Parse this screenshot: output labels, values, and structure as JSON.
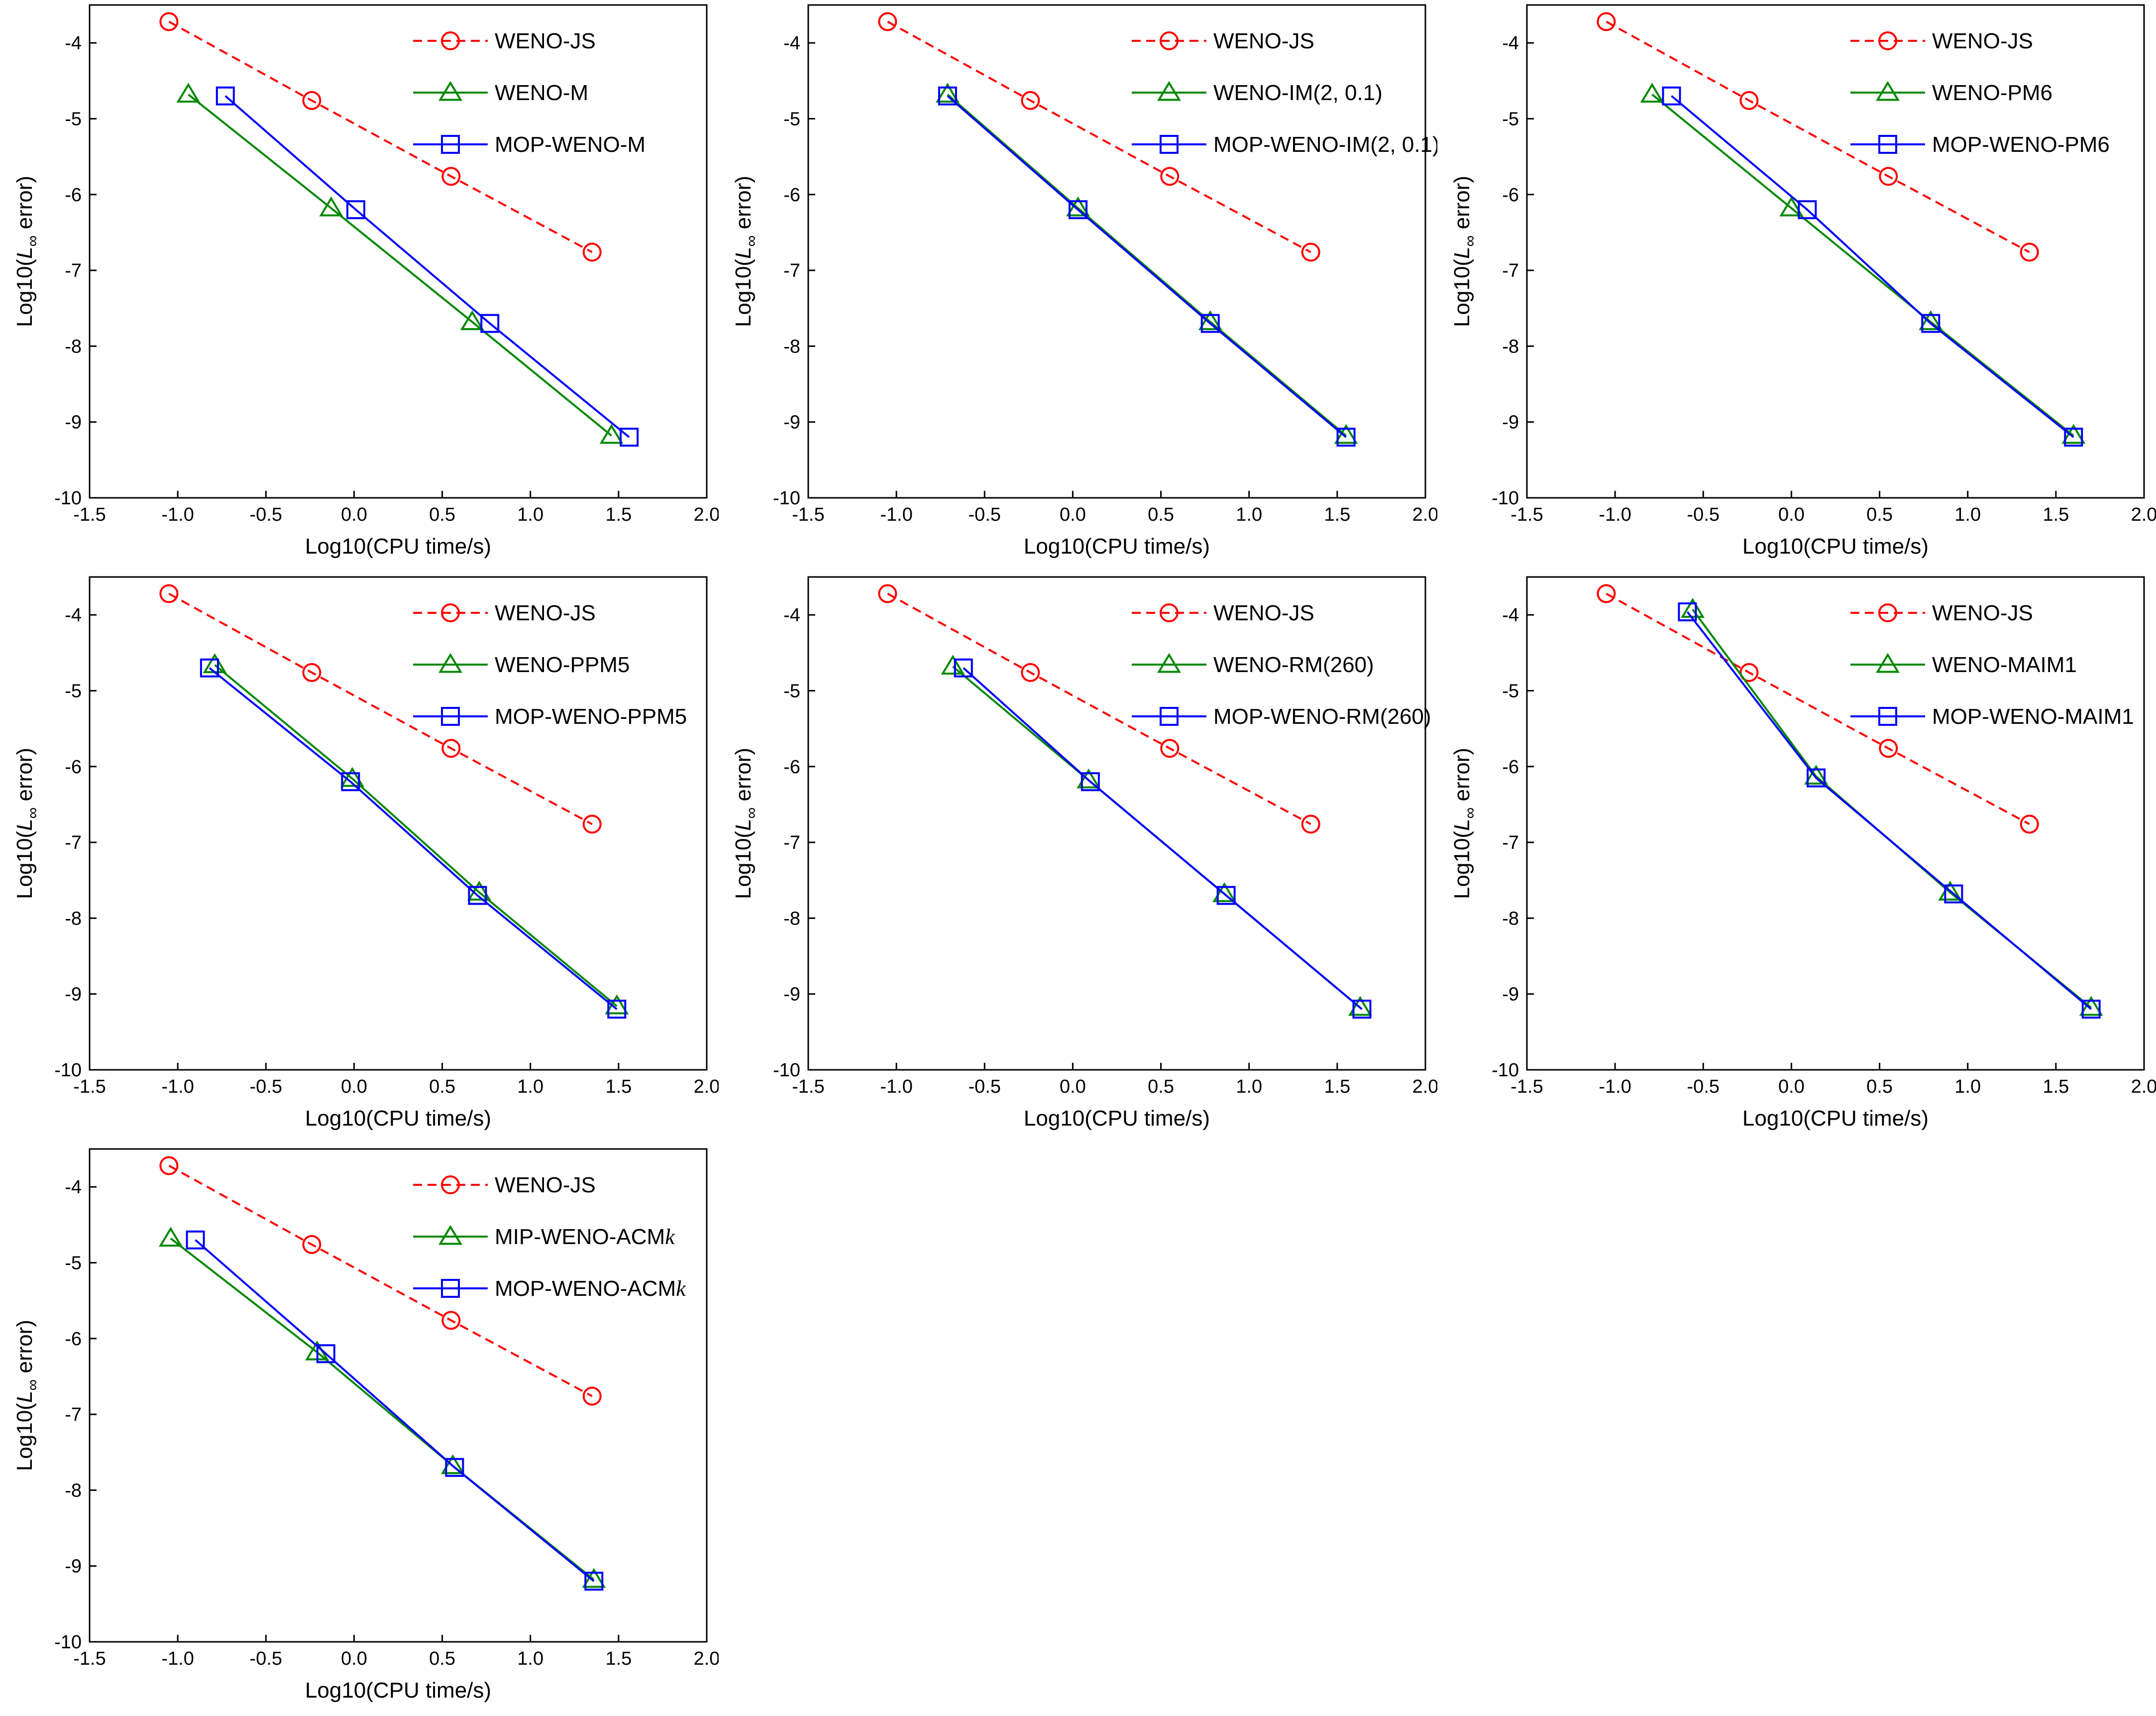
{
  "colors": {
    "js": "#ff0000",
    "method": "#008800",
    "mop": "#0000ff",
    "axis": "#000000"
  },
  "chart_data": [
    {
      "type": "line",
      "title": "",
      "xlabel": "Log10(CPU time/s)",
      "ylabel_prefix": "Log10(",
      "ylabel_symbol": "L",
      "ylabel_subscript": "∞",
      "ylabel_suffix": " error)",
      "xlim": [
        -1.5,
        2.0
      ],
      "ylim": [
        -10,
        -3.5
      ],
      "xticks": [
        -1.5,
        -1.0,
        -0.5,
        0.0,
        0.5,
        1.0,
        1.5,
        2.0
      ],
      "xticklabels": [
        "-1.5",
        "-1.0",
        "-0.5",
        "0.0",
        "0.5",
        "1.0",
        "1.5",
        "2.0"
      ],
      "yticks": [
        -10,
        -9,
        -8,
        -7,
        -6,
        -5,
        -4
      ],
      "yticklabels": [
        "-10",
        "-9",
        "-8",
        "-7",
        "-6",
        "-5",
        "-4"
      ],
      "legend": "top-right",
      "series": [
        {
          "name": "WENO-JS",
          "name_main": "WENO-JS",
          "name_italic": "",
          "style": "dashed",
          "marker": "circle",
          "color_key": "js",
          "x": [
            -1.05,
            -0.24,
            0.55,
            1.35
          ],
          "y": [
            -3.72,
            -4.76,
            -5.76,
            -6.76
          ]
        },
        {
          "name": "WENO-M",
          "name_main": "WENO-M",
          "name_italic": "",
          "style": "solid",
          "marker": "triangle",
          "color_key": "method",
          "x": [
            -0.94,
            -0.13,
            0.67,
            1.46
          ],
          "y": [
            -4.68,
            -6.18,
            -7.68,
            -9.18
          ]
        },
        {
          "name": "MOP-WENO-M",
          "name_main": "MOP-WENO-M",
          "name_italic": "",
          "style": "solid",
          "marker": "square",
          "color_key": "mop",
          "x": [
            -0.73,
            0.01,
            0.77,
            1.56
          ],
          "y": [
            -4.7,
            -6.2,
            -7.7,
            -9.2
          ]
        }
      ]
    },
    {
      "type": "line",
      "title": "",
      "xlabel": "Log10(CPU time/s)",
      "ylabel_prefix": "Log10(",
      "ylabel_symbol": "L",
      "ylabel_subscript": "∞",
      "ylabel_suffix": " error)",
      "xlim": [
        -1.5,
        2.0
      ],
      "ylim": [
        -10,
        -3.5
      ],
      "xticks": [
        -1.5,
        -1.0,
        -0.5,
        0.0,
        0.5,
        1.0,
        1.5,
        2.0
      ],
      "xticklabels": [
        "-1.5",
        "-1.0",
        "-0.5",
        "0.0",
        "0.5",
        "1.0",
        "1.5",
        "2.0"
      ],
      "yticks": [
        -10,
        -9,
        -8,
        -7,
        -6,
        -5,
        -4
      ],
      "yticklabels": [
        "-10",
        "-9",
        "-8",
        "-7",
        "-6",
        "-5",
        "-4"
      ],
      "legend": "top-right",
      "series": [
        {
          "name": "WENO-JS",
          "name_main": "WENO-JS",
          "name_italic": "",
          "style": "dashed",
          "marker": "circle",
          "color_key": "js",
          "x": [
            -1.05,
            -0.24,
            0.55,
            1.35
          ],
          "y": [
            -3.72,
            -4.76,
            -5.76,
            -6.76
          ]
        },
        {
          "name": "WENO-IM(2, 0.1)",
          "name_main": "WENO-IM(2, 0.1)",
          "name_italic": "",
          "style": "solid",
          "marker": "triangle",
          "color_key": "method",
          "x": [
            -0.71,
            0.03,
            0.78,
            1.55
          ],
          "y": [
            -4.68,
            -6.18,
            -7.68,
            -9.18
          ]
        },
        {
          "name": "MOP-WENO-IM(2, 0.1)",
          "name_main": "MOP-WENO-IM(2, 0.1)",
          "name_italic": "",
          "style": "solid",
          "marker": "square",
          "color_key": "mop",
          "x": [
            -0.71,
            0.03,
            0.78,
            1.55
          ],
          "y": [
            -4.7,
            -6.2,
            -7.7,
            -9.2
          ]
        }
      ]
    },
    {
      "type": "line",
      "title": "",
      "xlabel": "Log10(CPU time/s)",
      "ylabel_prefix": "Log10(",
      "ylabel_symbol": "L",
      "ylabel_subscript": "∞",
      "ylabel_suffix": " error)",
      "xlim": [
        -1.5,
        2.0
      ],
      "ylim": [
        -10,
        -3.5
      ],
      "xticks": [
        -1.5,
        -1.0,
        -0.5,
        0.0,
        0.5,
        1.0,
        1.5,
        2.0
      ],
      "xticklabels": [
        "-1.5",
        "-1.0",
        "-0.5",
        "0.0",
        "0.5",
        "1.0",
        "1.5",
        "2.0"
      ],
      "yticks": [
        -10,
        -9,
        -8,
        -7,
        -6,
        -5,
        -4
      ],
      "yticklabels": [
        "-10",
        "-9",
        "-8",
        "-7",
        "-6",
        "-5",
        "-4"
      ],
      "legend": "top-right",
      "series": [
        {
          "name": "WENO-JS",
          "name_main": "WENO-JS",
          "name_italic": "",
          "style": "dashed",
          "marker": "circle",
          "color_key": "js",
          "x": [
            -1.05,
            -0.24,
            0.55,
            1.35
          ],
          "y": [
            -3.72,
            -4.76,
            -5.76,
            -6.76
          ]
        },
        {
          "name": "WENO-PM6",
          "name_main": "WENO-PM6",
          "name_italic": "",
          "style": "solid",
          "marker": "triangle",
          "color_key": "method",
          "x": [
            -0.79,
            0.0,
            0.79,
            1.6
          ],
          "y": [
            -4.68,
            -6.18,
            -7.68,
            -9.18
          ]
        },
        {
          "name": "MOP-WENO-PM6",
          "name_main": "MOP-WENO-PM6",
          "name_italic": "",
          "style": "solid",
          "marker": "square",
          "color_key": "mop",
          "x": [
            -0.68,
            0.09,
            0.79,
            1.6
          ],
          "y": [
            -4.7,
            -6.2,
            -7.7,
            -9.2
          ]
        }
      ]
    },
    {
      "type": "line",
      "title": "",
      "xlabel": "Log10(CPU time/s)",
      "ylabel_prefix": "Log10(",
      "ylabel_symbol": "L",
      "ylabel_subscript": "∞",
      "ylabel_suffix": " error)",
      "xlim": [
        -1.5,
        2.0
      ],
      "ylim": [
        -10,
        -3.5
      ],
      "xticks": [
        -1.5,
        -1.0,
        -0.5,
        0.0,
        0.5,
        1.0,
        1.5,
        2.0
      ],
      "xticklabels": [
        "-1.5",
        "-1.0",
        "-0.5",
        "0.0",
        "0.5",
        "1.0",
        "1.5",
        "2.0"
      ],
      "yticks": [
        -10,
        -9,
        -8,
        -7,
        -6,
        -5,
        -4
      ],
      "yticklabels": [
        "-10",
        "-9",
        "-8",
        "-7",
        "-6",
        "-5",
        "-4"
      ],
      "legend": "top-right",
      "series": [
        {
          "name": "WENO-JS",
          "name_main": "WENO-JS",
          "name_italic": "",
          "style": "dashed",
          "marker": "circle",
          "color_key": "js",
          "x": [
            -1.05,
            -0.24,
            0.55,
            1.35
          ],
          "y": [
            -3.72,
            -4.76,
            -5.76,
            -6.76
          ]
        },
        {
          "name": "WENO-PPM5",
          "name_main": "WENO-PPM5",
          "name_italic": "",
          "style": "solid",
          "marker": "triangle",
          "color_key": "method",
          "x": [
            -0.79,
            -0.01,
            0.71,
            1.49
          ],
          "y": [
            -4.66,
            -6.16,
            -7.66,
            -9.16
          ]
        },
        {
          "name": "MOP-WENO-PPM5",
          "name_main": "MOP-WENO-PPM5",
          "name_italic": "",
          "style": "solid",
          "marker": "square",
          "color_key": "mop",
          "x": [
            -0.82,
            -0.02,
            0.7,
            1.49
          ],
          "y": [
            -4.7,
            -6.2,
            -7.7,
            -9.2
          ]
        }
      ]
    },
    {
      "type": "line",
      "title": "",
      "xlabel": "Log10(CPU time/s)",
      "ylabel_prefix": "Log10(",
      "ylabel_symbol": "L",
      "ylabel_subscript": "∞",
      "ylabel_suffix": " error)",
      "xlim": [
        -1.5,
        2.0
      ],
      "ylim": [
        -10,
        -3.5
      ],
      "xticks": [
        -1.5,
        -1.0,
        -0.5,
        0.0,
        0.5,
        1.0,
        1.5,
        2.0
      ],
      "xticklabels": [
        "-1.5",
        "-1.0",
        "-0.5",
        "0.0",
        "0.5",
        "1.0",
        "1.5",
        "2.0"
      ],
      "yticks": [
        -10,
        -9,
        -8,
        -7,
        -6,
        -5,
        -4
      ],
      "yticklabels": [
        "-10",
        "-9",
        "-8",
        "-7",
        "-6",
        "-5",
        "-4"
      ],
      "legend": "top-right",
      "series": [
        {
          "name": "WENO-JS",
          "name_main": "WENO-JS",
          "name_italic": "",
          "style": "dashed",
          "marker": "circle",
          "color_key": "js",
          "x": [
            -1.05,
            -0.24,
            0.55,
            1.35
          ],
          "y": [
            -3.72,
            -4.76,
            -5.76,
            -6.76
          ]
        },
        {
          "name": "WENO-RM(260)",
          "name_main": "WENO-RM(260)",
          "name_italic": "",
          "style": "solid",
          "marker": "triangle",
          "color_key": "method",
          "x": [
            -0.68,
            0.09,
            0.86,
            1.63
          ],
          "y": [
            -4.68,
            -6.18,
            -7.68,
            -9.18
          ]
        },
        {
          "name": "MOP-WENO-RM(260)",
          "name_main": "MOP-WENO-RM(260)",
          "name_italic": "",
          "style": "solid",
          "marker": "square",
          "color_key": "mop",
          "x": [
            -0.62,
            0.1,
            0.87,
            1.64
          ],
          "y": [
            -4.7,
            -6.2,
            -7.7,
            -9.2
          ]
        }
      ]
    },
    {
      "type": "line",
      "title": "",
      "xlabel": "Log10(CPU time/s)",
      "ylabel_prefix": "Log10(",
      "ylabel_symbol": "L",
      "ylabel_subscript": "∞",
      "ylabel_suffix": " error)",
      "xlim": [
        -1.5,
        2.0
      ],
      "ylim": [
        -10,
        -3.5
      ],
      "xticks": [
        -1.5,
        -1.0,
        -0.5,
        0.0,
        0.5,
        1.0,
        1.5,
        2.0
      ],
      "xticklabels": [
        "-1.5",
        "-1.0",
        "-0.5",
        "0.0",
        "0.5",
        "1.0",
        "1.5",
        "2.0"
      ],
      "yticks": [
        -10,
        -9,
        -8,
        -7,
        -6,
        -5,
        -4
      ],
      "yticklabels": [
        "-10",
        "-9",
        "-8",
        "-7",
        "-6",
        "-5",
        "-4"
      ],
      "legend": "top-right",
      "series": [
        {
          "name": "WENO-JS",
          "name_main": "WENO-JS",
          "name_italic": "",
          "style": "dashed",
          "marker": "circle",
          "color_key": "js",
          "x": [
            -1.05,
            -0.24,
            0.55,
            1.35
          ],
          "y": [
            -3.72,
            -4.76,
            -5.76,
            -6.76
          ]
        },
        {
          "name": "WENO-MAIM1",
          "name_main": "WENO-MAIM1",
          "name_italic": "",
          "style": "solid",
          "marker": "triangle",
          "color_key": "method",
          "x": [
            -0.56,
            0.14,
            0.9,
            1.7
          ],
          "y": [
            -3.93,
            -6.13,
            -7.66,
            -9.18
          ]
        },
        {
          "name": "MOP-WENO-MAIM1",
          "name_main": "MOP-WENO-MAIM1",
          "name_italic": "",
          "style": "solid",
          "marker": "square",
          "color_key": "mop",
          "x": [
            -0.59,
            0.14,
            0.92,
            1.7
          ],
          "y": [
            -3.96,
            -6.15,
            -7.68,
            -9.2
          ]
        }
      ]
    },
    {
      "type": "line",
      "title": "",
      "xlabel": "Log10(CPU time/s)",
      "ylabel_prefix": "Log10(",
      "ylabel_symbol": "L",
      "ylabel_subscript": "∞",
      "ylabel_suffix": " error)",
      "xlim": [
        -1.5,
        2.0
      ],
      "ylim": [
        -10,
        -3.5
      ],
      "xticks": [
        -1.5,
        -1.0,
        -0.5,
        0.0,
        0.5,
        1.0,
        1.5,
        2.0
      ],
      "xticklabels": [
        "-1.5",
        "-1.0",
        "-0.5",
        "0.0",
        "0.5",
        "1.0",
        "1.5",
        "2.0"
      ],
      "yticks": [
        -10,
        -9,
        -8,
        -7,
        -6,
        -5,
        -4
      ],
      "yticklabels": [
        "-10",
        "-9",
        "-8",
        "-7",
        "-6",
        "-5",
        "-4"
      ],
      "legend": "top-right",
      "series": [
        {
          "name": "WENO-JS",
          "name_main": "WENO-JS",
          "name_italic": "",
          "style": "dashed",
          "marker": "circle",
          "color_key": "js",
          "x": [
            -1.05,
            -0.24,
            0.55,
            1.35
          ],
          "y": [
            -3.72,
            -4.76,
            -5.76,
            -6.76
          ]
        },
        {
          "name": "MIP-WENO-ACMk",
          "name_main": "MIP-WENO-ACM",
          "name_italic": "k",
          "style": "solid",
          "marker": "triangle",
          "color_key": "method",
          "x": [
            -1.04,
            -0.21,
            0.56,
            1.36
          ],
          "y": [
            -4.68,
            -6.18,
            -7.68,
            -9.18
          ]
        },
        {
          "name": "MOP-WENO-ACMk",
          "name_main": "MOP-WENO-ACM",
          "name_italic": "k",
          "style": "solid",
          "marker": "square",
          "color_key": "mop",
          "x": [
            -0.9,
            -0.16,
            0.57,
            1.36
          ],
          "y": [
            -4.7,
            -6.2,
            -7.7,
            -9.2
          ]
        }
      ]
    }
  ]
}
